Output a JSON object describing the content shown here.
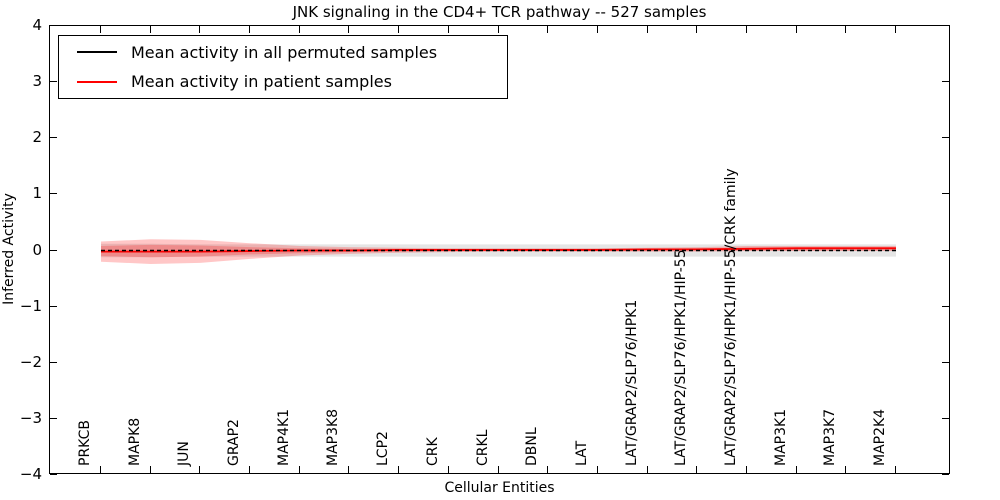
{
  "chart_data": {
    "type": "line",
    "title": "JNK signaling in the CD4+ TCR pathway -- 527 samples",
    "xlabel": "Cellular Entities",
    "ylabel": "Inferred Activity",
    "ylim": [
      -4,
      4
    ],
    "yticks": [
      "4",
      "3",
      "2",
      "1",
      "0",
      "−1",
      "−2",
      "−3",
      "−4"
    ],
    "ytick_values": [
      4,
      3,
      2,
      1,
      0,
      -1,
      -2,
      -3,
      -4
    ],
    "grid": false,
    "legend_position": "upper left",
    "categories": [
      "PRKCB",
      "MAPK8",
      "JUN",
      "GRAP2",
      "MAP4K1",
      "MAP3K8",
      "LCP2",
      "CRK",
      "CRKL",
      "DBNL",
      "LAT",
      "LAT/GRAP2/SLP76/HPK1",
      "LAT/GRAP2/SLP76/HPK1/HIP-55",
      "LAT/GRAP2/SLP76/HPK1/HIP-55/CRK family",
      "MAP3K1",
      "MAP3K7",
      "MAP2K4"
    ],
    "series": [
      {
        "name": "Mean activity in all permuted samples",
        "color": "#000000",
        "line_style": "dashed",
        "values": [
          0,
          0,
          0,
          0,
          0,
          0,
          0,
          0,
          0,
          0,
          0,
          0,
          0,
          0,
          0,
          0,
          0
        ],
        "band_upper": [
          0.12,
          0.12,
          0.11,
          0.11,
          0.11,
          0.11,
          0.11,
          0.11,
          0.11,
          0.11,
          0.11,
          0.11,
          0.11,
          0.11,
          0.11,
          0.11,
          0.11
        ],
        "band_lower": [
          -0.12,
          -0.12,
          -0.11,
          -0.11,
          -0.11,
          -0.11,
          -0.11,
          -0.11,
          -0.11,
          -0.11,
          -0.11,
          -0.11,
          -0.11,
          -0.11,
          -0.11,
          -0.11,
          -0.11
        ],
        "band_color": "rgba(0,0,0,0.10)"
      },
      {
        "name": "Mean activity in patient samples",
        "color": "#ff0000",
        "line_style": "solid",
        "values": [
          -0.02,
          -0.02,
          -0.02,
          -0.01,
          0.0,
          0.0,
          0.01,
          0.01,
          0.01,
          0.01,
          0.01,
          0.02,
          0.02,
          0.03,
          0.04,
          0.04,
          0.04
        ],
        "band_upper": [
          0.16,
          0.2,
          0.19,
          0.13,
          0.08,
          0.06,
          0.05,
          0.04,
          0.04,
          0.04,
          0.04,
          0.05,
          0.06,
          0.08,
          0.08,
          0.08,
          0.08
        ],
        "band_lower": [
          -0.2,
          -0.24,
          -0.22,
          -0.15,
          -0.09,
          -0.06,
          -0.04,
          -0.03,
          -0.02,
          -0.02,
          -0.02,
          -0.02,
          -0.02,
          -0.01,
          -0.01,
          -0.01,
          -0.01
        ],
        "band_inner_upper": [
          0.08,
          0.1,
          0.09,
          0.06,
          0.04,
          0.03,
          0.03,
          0.02,
          0.02,
          0.02,
          0.03,
          0.03,
          0.04,
          0.05,
          0.06,
          0.06,
          0.06
        ],
        "band_inner_lower": [
          -0.1,
          -0.12,
          -0.11,
          -0.07,
          -0.05,
          -0.03,
          -0.02,
          -0.01,
          -0.01,
          -0.01,
          -0.01,
          -0.01,
          0.0,
          0.0,
          0.0,
          0.0,
          0.0
        ],
        "band_color": "rgba(255,0,0,0.22)"
      }
    ]
  }
}
